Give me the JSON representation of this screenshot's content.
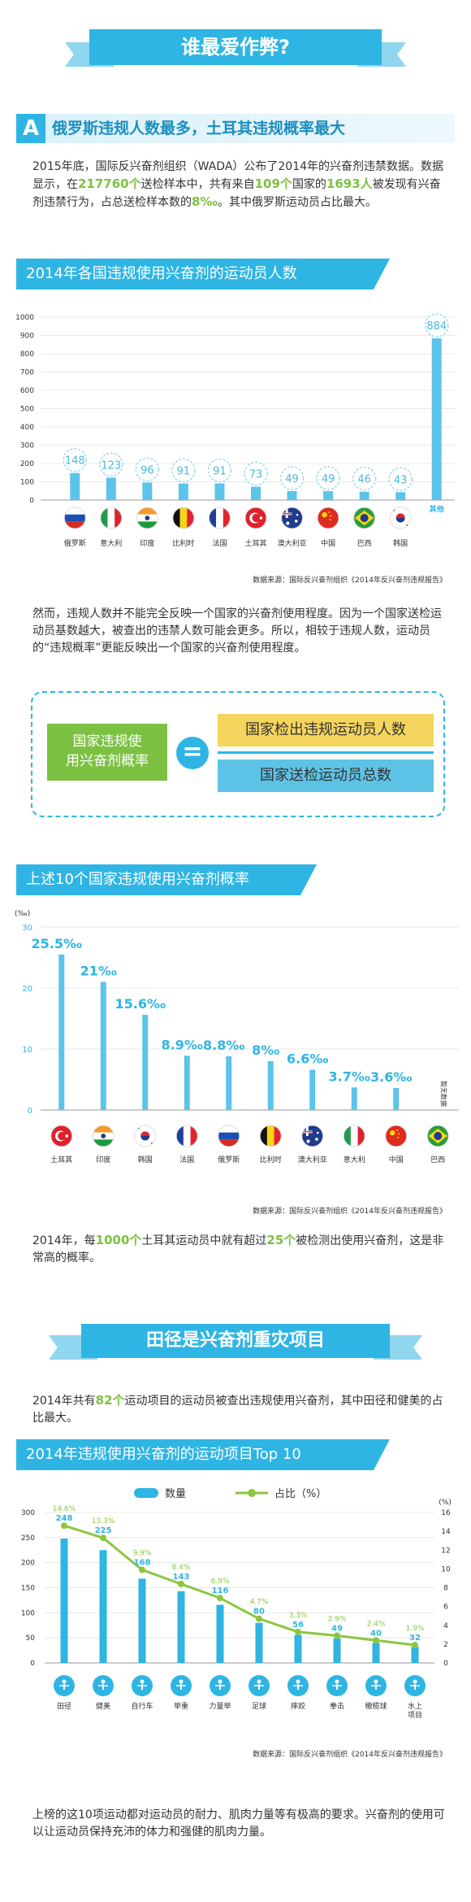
{
  "header": {
    "title": "谁最爱作弊?"
  },
  "section_a": {
    "letter": "A",
    "title": "俄罗斯违规人数最多，土耳其违规概率最大",
    "para1_parts": [
      "2015年底，国际反兴奋剂组织（WADA）公布了2014年的兴奋剂违禁数据。数据显示，在",
      "217760个",
      "送检样本中，共有来自",
      "109个",
      "国家的",
      "1693人",
      "被发现有兴奋剂违禁行为，占总送检样本数的",
      "8‰",
      "。其中俄罗斯运动员占比最大。"
    ]
  },
  "chart1_title": "2014年各国违规使用兴奋剂的运动员人数",
  "chart1_source": "数据来源：国际反兴奋剂组织《2014年反兴奋剂违规报告》",
  "para2": "然而，违规人数并不能完全反映一个国家的兴奋剂使用程度。因为一个国家送检运动员基数越大，被查出的违禁人数可能会更多。所以，相较于违规人数，运动员的“违规概率”更能反映出一个国家的兴奋剂使用程度。",
  "formula": {
    "left_line1": "国家违规使",
    "left_line2": "用兴奋剂概率",
    "equals": "=",
    "numerator": "国家检出违规运动员人数",
    "denominator": "国家送检运动员总数"
  },
  "chart2_title": "上述10个国家违规使用兴奋剂概率",
  "chart2_source": "数据来源：国际反兴奋剂组织《2014年反兴奋剂违规报告》",
  "para3_parts": [
    "2014年，每",
    "1000个",
    "土耳其运动员中就有超过",
    "25个",
    "被检测出使用兴奋剂，这是非常高的概率。"
  ],
  "section_b": {
    "title": "田径是兴奋剂重灾项目"
  },
  "para4_parts": [
    "2014年共有",
    "82个",
    "运动项目的运动员被查出违规使用兴奋剂，其中田径和健美的占比最大。"
  ],
  "chart3_title": "2014年违规使用兴奋剂的运动项目Top 10",
  "chart3_source": "数据来源：国际反兴奋剂组织《2014年反兴奋剂违规报告》",
  "para5": "上榜的这10项运动都对运动员的耐力、肌肉力量等有极高的要求。兴奋剂的使用可以让运动员保持充沛的体力和强健的肌肉力量。",
  "colors": {
    "accent": "#2fb5e3",
    "green": "#7cc142",
    "yellow": "#f5d55e"
  },
  "chart_data": [
    {
      "type": "bar",
      "title": "2014年各国违规使用兴奋剂的运动员人数",
      "categories": [
        "俄罗斯",
        "意大利",
        "印度",
        "比利时",
        "法国",
        "土耳其",
        "澳大利亚",
        "中国",
        "巴西",
        "韩国",
        "其他"
      ],
      "values": [
        148,
        123,
        96,
        91,
        91,
        73,
        49,
        49,
        46,
        43,
        884
      ],
      "ylim": [
        0,
        1000
      ],
      "yticks": [
        0,
        100,
        200,
        300,
        400,
        500,
        600,
        700,
        800,
        900,
        1000
      ],
      "ytick_labels": [
        "0",
        "100",
        "200",
        "300",
        "400",
        "500",
        "600",
        "700",
        "800",
        "900",
        "1000"
      ],
      "grid": true,
      "flag_icons": [
        "russia-flag-icon",
        "italy-flag-icon",
        "india-flag-icon",
        "belgium-flag-icon",
        "france-flag-icon",
        "turkey-flag-icon",
        "australia-flag-icon",
        "china-flag-icon",
        "brazil-flag-icon",
        "korea-flag-icon"
      ]
    },
    {
      "type": "bar",
      "title": "上述10个国家违规使用兴奋剂概率",
      "ylabel": "(‰)",
      "categories": [
        "土耳其",
        "印度",
        "韩国",
        "法国",
        "俄罗斯",
        "比利时",
        "澳大利亚",
        "意大利",
        "中国",
        "巴西"
      ],
      "values": [
        25.5,
        21,
        15.6,
        8.9,
        8.8,
        8,
        6.6,
        3.7,
        3.6,
        null
      ],
      "value_labels": [
        "25.5‰",
        "21‰",
        "15.6‰",
        "8.9‰",
        "8.8‰",
        "8‰",
        "6.6‰",
        "3.7‰",
        "3.6‰",
        "暂无数据"
      ],
      "ylim": [
        0,
        30
      ],
      "yticks": [
        0,
        10,
        20,
        30
      ],
      "ytick_labels": [
        "0",
        "10",
        "20",
        "30"
      ],
      "grid": true,
      "flag_icons": [
        "turkey-flag-icon",
        "india-flag-icon",
        "korea-flag-icon",
        "france-flag-icon",
        "russia-flag-icon",
        "belgium-flag-icon",
        "australia-flag-icon",
        "italy-flag-icon",
        "china-flag-icon",
        "brazil-flag-icon"
      ]
    },
    {
      "type": "bar",
      "title": "2014年违规使用兴奋剂的运动项目Top 10",
      "categories": [
        "田径",
        "健美",
        "自行车",
        "举重",
        "力量举",
        "足球",
        "摔跤",
        "拳击",
        "橄榄球",
        "水上项目"
      ],
      "series": [
        {
          "name": "数量",
          "type": "bar",
          "values": [
            248,
            225,
            168,
            143,
            116,
            80,
            56,
            49,
            40,
            32
          ]
        },
        {
          "name": "占比（%）",
          "type": "line",
          "values": [
            14.6,
            13.3,
            9.9,
            8.4,
            6.9,
            4.7,
            3.3,
            2.9,
            2.4,
            1.9
          ],
          "value_labels": [
            "14.6%",
            "13.3%",
            "9.9%",
            "8.4%",
            "6.9%",
            "4.7%",
            "3.3%",
            "2.9%",
            "2.4%",
            "1.9%"
          ]
        }
      ],
      "ylim": [
        0,
        300
      ],
      "yticks": [
        0,
        50,
        100,
        150,
        200,
        250,
        300
      ],
      "ytick_labels": [
        "0",
        "50",
        "100",
        "150",
        "200",
        "250",
        "300"
      ],
      "y2label": "(%)",
      "y2lim": [
        0,
        16
      ],
      "y2ticks": [
        0,
        2,
        4,
        6,
        8,
        10,
        12,
        14,
        16
      ],
      "y2tick_labels": [
        "0",
        "2",
        "4",
        "6",
        "8",
        "10",
        "12",
        "14",
        "16"
      ],
      "legend": "top",
      "sport_icons": [
        "athletics-icon",
        "bodybuilding-icon",
        "cycling-icon",
        "weightlifting-icon",
        "powerlifting-icon",
        "football-icon",
        "wrestling-icon",
        "boxing-icon",
        "rugby-icon",
        "aquatics-icon"
      ]
    }
  ]
}
